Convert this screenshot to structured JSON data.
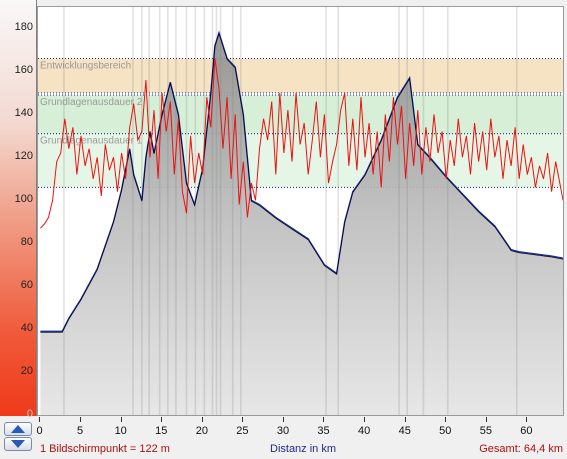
{
  "chart_data": {
    "type": "area",
    "yticks": [
      "180",
      "160",
      "140",
      "120",
      "100",
      "80",
      "60",
      "40",
      "20",
      "0"
    ],
    "ylim": [
      0,
      190
    ],
    "xticks": [
      "0",
      "5",
      "10",
      "15",
      "20",
      "25",
      "30",
      "35",
      "40",
      "45",
      "50",
      "55",
      "60"
    ],
    "xlim": [
      -0.3,
      64.4
    ],
    "zones": [
      {
        "label": "Entwicklungsbereich",
        "from": 150,
        "to": 166,
        "color": "#f5e3c4"
      },
      {
        "label": "Grundlagenausdauer 2",
        "from": 131,
        "to": 149,
        "color": "#d6efd6"
      },
      {
        "label": "Grundlagenausdauer 1",
        "from": 106,
        "to": 131,
        "color": "#e6f6e6"
      }
    ],
    "series": [
      {
        "name": "",
        "color": "#1a2a9a",
        "x": [
          0,
          2.7,
          3.5,
          5,
          7,
          9,
          10,
          11,
          11.5,
          12.5,
          13,
          13.5,
          14,
          15,
          16,
          17,
          18,
          19,
          20,
          21,
          21.5,
          22,
          23,
          24,
          25,
          26,
          27,
          29,
          31,
          33,
          35,
          36.5,
          37.5,
          38.5,
          40,
          42,
          44,
          45.5,
          46.5,
          48,
          50,
          52,
          54,
          56,
          58,
          59,
          61,
          63,
          64.4
        ],
        "values": [
          39,
          39,
          45,
          54,
          68,
          90,
          105,
          124,
          112,
          100,
          120,
          132,
          122,
          140,
          155,
          140,
          108,
          98,
          115,
          150,
          172,
          178,
          166,
          162,
          140,
          100,
          98,
          92,
          87,
          82,
          70,
          66,
          90,
          104,
          112,
          128,
          148,
          157,
          126,
          120,
          111,
          103,
          95,
          88,
          77,
          76,
          75,
          74,
          73
        ]
      }
    ],
    "hr_series": {
      "name": "",
      "color": "#ee1111",
      "x": [
        0,
        0.5,
        1,
        1.5,
        2,
        2.5,
        3,
        3.5,
        4,
        4.5,
        5,
        5.5,
        6,
        6.5,
        7,
        7.5,
        8,
        8.5,
        9,
        9.5,
        10,
        10.5,
        11,
        11.5,
        12,
        12.5,
        13,
        13.5,
        14,
        14.5,
        15,
        15.5,
        16,
        16.5,
        17,
        17.5,
        18,
        18.5,
        19,
        19.5,
        20,
        20.5,
        21,
        21.5,
        22,
        22.5,
        23,
        23.5,
        24,
        24.5,
        25,
        25.5,
        26,
        26.5,
        27,
        27.5,
        28,
        28.5,
        29,
        29.5,
        30,
        30.5,
        31,
        31.5,
        32,
        32.5,
        33,
        33.5,
        34,
        34.5,
        35,
        35.5,
        36,
        36.5,
        37,
        37.5,
        38,
        38.5,
        39,
        39.5,
        40,
        40.5,
        41,
        41.5,
        42,
        42.5,
        43,
        43.5,
        44,
        44.5,
        45,
        45.5,
        46,
        46.5,
        47,
        47.5,
        48,
        48.5,
        49,
        49.5,
        50,
        50.5,
        51,
        51.5,
        52,
        52.5,
        53,
        53.5,
        54,
        54.5,
        55,
        55.5,
        56,
        56.5,
        57,
        57.5,
        58,
        58.5,
        59,
        59.5,
        60,
        60.5,
        61,
        61.5,
        62,
        62.5,
        63,
        63.5,
        64,
        64.4
      ],
      "values": [
        87,
        89,
        92,
        100,
        118,
        122,
        138,
        124,
        134,
        112,
        130,
        116,
        124,
        110,
        120,
        102,
        126,
        114,
        120,
        104,
        122,
        110,
        134,
        145,
        128,
        132,
        156,
        120,
        142,
        110,
        150,
        132,
        146,
        112,
        138,
        104,
        94,
        130,
        108,
        122,
        112,
        148,
        134,
        166,
        152,
        124,
        148,
        110,
        140,
        98,
        118,
        92,
        108,
        100,
        124,
        138,
        128,
        146,
        112,
        150,
        122,
        142,
        118,
        150,
        126,
        136,
        112,
        128,
        146,
        120,
        140,
        108,
        118,
        126,
        142,
        150,
        116,
        138,
        114,
        148,
        120,
        136,
        112,
        132,
        106,
        140,
        118,
        148,
        126,
        144,
        110,
        136,
        116,
        142,
        112,
        134,
        118,
        140,
        122,
        132,
        110,
        128,
        116,
        138,
        120,
        130,
        112,
        136,
        118,
        132,
        114,
        138,
        120,
        130,
        110,
        128,
        116,
        134,
        110,
        126,
        112,
        120,
        106,
        116,
        110,
        122,
        104,
        118,
        108,
        100
      ]
    },
    "bands_x": [
      2.8,
      11.3,
      12.4,
      13.3,
      14.6,
      15.6,
      16.6,
      17.9,
      19,
      20.1,
      21.1,
      21.6,
      22.1,
      23.6,
      24.6,
      35.1,
      36.6,
      44.1,
      45.1,
      47.1,
      50.1,
      58.6
    ]
  },
  "footer": {
    "left": "1 Bildschirmpunkt = 122 m",
    "center": "Distanz in km",
    "right": "Gesamt: 64,4 km"
  },
  "icons": {
    "up": "triangle-up-icon",
    "down": "triangle-down-icon"
  }
}
